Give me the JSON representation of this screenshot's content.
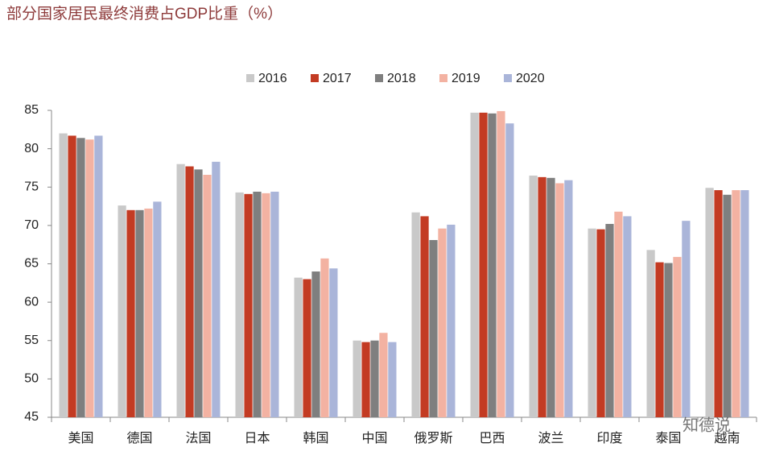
{
  "chart_data": {
    "type": "bar",
    "title": "部分国家居民最终消费占GDP比重（%）",
    "categories": [
      "美国",
      "德国",
      "法国",
      "日本",
      "韩国",
      "中国",
      "俄罗斯",
      "巴西",
      "波兰",
      "印度",
      "泰国",
      "越南"
    ],
    "series": [
      {
        "name": "2016",
        "color": "#c9c9c9",
        "values": [
          82.0,
          72.6,
          78.0,
          74.3,
          63.2,
          55.0,
          71.7,
          84.7,
          76.5,
          69.6,
          66.8,
          74.9
        ]
      },
      {
        "name": "2017",
        "color": "#c33b23",
        "values": [
          81.7,
          72.0,
          77.7,
          74.1,
          63.0,
          54.8,
          71.2,
          84.7,
          76.3,
          69.5,
          65.2,
          74.6
        ]
      },
      {
        "name": "2018",
        "color": "#7f7f7f",
        "values": [
          81.4,
          72.0,
          77.3,
          74.4,
          64.0,
          55.0,
          68.1,
          84.6,
          76.2,
          70.2,
          65.1,
          74.0
        ]
      },
      {
        "name": "2019",
        "color": "#f3b2a2",
        "values": [
          81.2,
          72.2,
          76.6,
          74.2,
          65.7,
          56.0,
          69.6,
          84.9,
          75.5,
          71.8,
          65.9,
          74.6
        ]
      },
      {
        "name": "2020",
        "color": "#aab5d9",
        "values": [
          81.7,
          73.1,
          78.3,
          74.4,
          64.4,
          54.8,
          70.1,
          83.3,
          75.9,
          71.2,
          70.6,
          74.6
        ]
      }
    ],
    "ylim": [
      45,
      85
    ],
    "yticks": [
      45,
      50,
      55,
      60,
      65,
      70,
      75,
      80,
      85
    ],
    "legend": "top",
    "watermark": "知德说"
  }
}
